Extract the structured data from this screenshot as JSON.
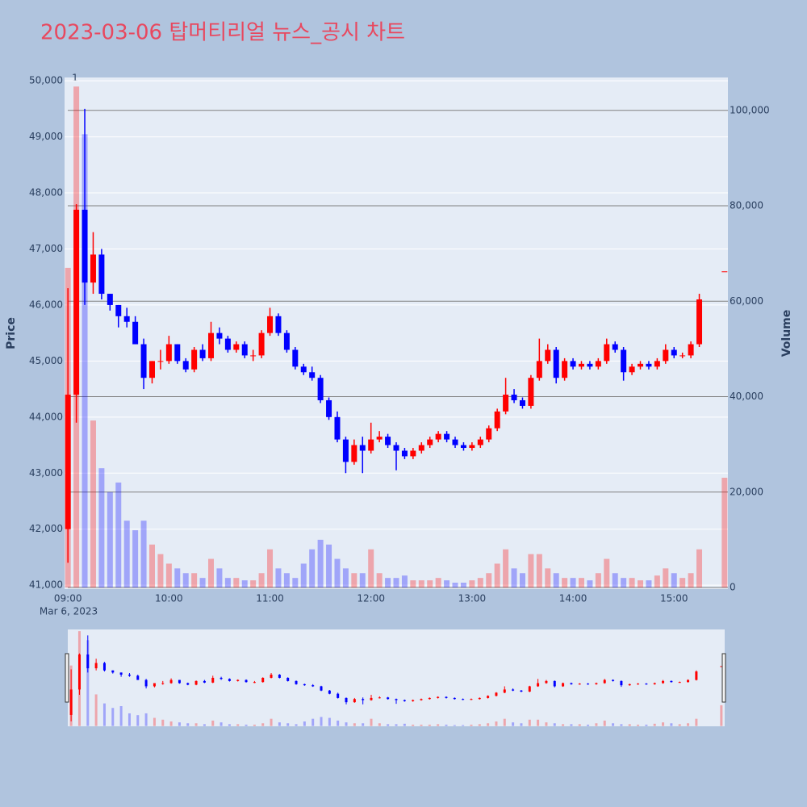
{
  "chart_data": {
    "type": "candlestick",
    "title": "2023-03-06 탑머티리얼 뉴스_공시 차트",
    "annotation": "1",
    "y_label": "Price",
    "y2_label": "Volume",
    "x_date_label": "Mar 6, 2023",
    "up_color": "#ff0000",
    "down_color": "#0000ff",
    "x": [
      "09:00",
      "09:05",
      "09:10",
      "09:15",
      "09:20",
      "09:25",
      "09:30",
      "09:35",
      "09:40",
      "09:45",
      "09:50",
      "09:55",
      "10:00",
      "10:05",
      "10:10",
      "10:15",
      "10:20",
      "10:25",
      "10:30",
      "10:35",
      "10:40",
      "10:45",
      "10:50",
      "10:55",
      "11:00",
      "11:05",
      "11:10",
      "11:15",
      "11:20",
      "11:25",
      "11:30",
      "11:35",
      "11:40",
      "11:45",
      "11:50",
      "11:55",
      "12:00",
      "12:05",
      "12:10",
      "12:15",
      "12:20",
      "12:25",
      "12:30",
      "12:35",
      "12:40",
      "12:45",
      "12:50",
      "12:55",
      "13:00",
      "13:05",
      "13:10",
      "13:15",
      "13:20",
      "13:25",
      "13:30",
      "13:35",
      "13:40",
      "13:45",
      "13:50",
      "13:55",
      "14:00",
      "14:05",
      "14:10",
      "14:15",
      "14:20",
      "14:25",
      "14:30",
      "14:35",
      "14:40",
      "14:45",
      "14:50",
      "14:55",
      "15:00",
      "15:05",
      "15:10",
      "15:15",
      "15:30"
    ],
    "open": [
      42000,
      44400,
      47700,
      46400,
      46900,
      46200,
      46000,
      45800,
      45700,
      45300,
      44700,
      45000,
      45000,
      45300,
      45000,
      44850,
      45200,
      45050,
      45500,
      45400,
      45200,
      45300,
      45100,
      45100,
      45500,
      45800,
      45500,
      45200,
      44900,
      44800,
      44700,
      44300,
      44000,
      43600,
      43200,
      43500,
      43400,
      43600,
      43650,
      43500,
      43400,
      43300,
      43400,
      43500,
      43600,
      43700,
      43600,
      43500,
      43450,
      43500,
      43600,
      43800,
      44100,
      44400,
      44300,
      44200,
      44700,
      45000,
      45200,
      44700,
      45000,
      44900,
      44950,
      44900,
      45000,
      45300,
      45200,
      44800,
      44900,
      44950,
      44900,
      45000,
      45200,
      45100,
      45100,
      45300,
      46600
    ],
    "high": [
      46300,
      47800,
      49500,
      47300,
      47000,
      46200,
      46000,
      45950,
      45800,
      45400,
      45000,
      45200,
      45450,
      45300,
      45050,
      45250,
      45300,
      45700,
      45600,
      45450,
      45350,
      45350,
      45200,
      45550,
      45950,
      45850,
      45550,
      45250,
      44950,
      44900,
      44750,
      44350,
      44100,
      43650,
      43600,
      43650,
      43900,
      43750,
      43700,
      43550,
      43450,
      43450,
      43550,
      43650,
      43750,
      43750,
      43650,
      43550,
      43550,
      43650,
      43850,
      44150,
      44700,
      44500,
      44350,
      44750,
      45400,
      45300,
      45250,
      45050,
      45050,
      45000,
      45000,
      45050,
      45400,
      45350,
      45250,
      44950,
      45000,
      45000,
      45050,
      45300,
      45250,
      45150,
      45350,
      46200,
      46600
    ],
    "low": [
      41400,
      43900,
      46000,
      46200,
      46100,
      45900,
      45600,
      45600,
      45300,
      44500,
      44600,
      44850,
      44950,
      44950,
      44800,
      44800,
      45000,
      45000,
      45300,
      45150,
      45150,
      45050,
      45000,
      45050,
      45450,
      45450,
      45150,
      44850,
      44750,
      44650,
      44250,
      43950,
      43550,
      43000,
      43150,
      43000,
      43350,
      43550,
      43450,
      43050,
      43250,
      43250,
      43350,
      43450,
      43550,
      43550,
      43450,
      43400,
      43400,
      43450,
      43550,
      43750,
      44050,
      44250,
      44150,
      44150,
      44650,
      44950,
      44600,
      44650,
      44850,
      44850,
      44850,
      44850,
      44950,
      45150,
      44650,
      44750,
      44850,
      44850,
      44850,
      44950,
      45050,
      45050,
      45050,
      45250,
      46600
    ],
    "close": [
      44400,
      47700,
      46400,
      46900,
      46200,
      46000,
      45800,
      45700,
      45300,
      44700,
      45000,
      45000,
      45300,
      45000,
      44850,
      45200,
      45050,
      45500,
      45400,
      45200,
      45300,
      45100,
      45100,
      45500,
      45800,
      45500,
      45200,
      44900,
      44800,
      44700,
      44300,
      44000,
      43600,
      43200,
      43500,
      43400,
      43600,
      43650,
      43500,
      43400,
      43300,
      43400,
      43500,
      43600,
      43700,
      43600,
      43500,
      43450,
      43500,
      43600,
      43800,
      44100,
      44400,
      44300,
      44200,
      44700,
      45000,
      45200,
      44700,
      45000,
      44900,
      44950,
      44900,
      45000,
      45300,
      45200,
      44800,
      44900,
      44950,
      44900,
      45000,
      45200,
      45100,
      45100,
      45300,
      46100,
      46600
    ],
    "volume": [
      67000,
      105000,
      95000,
      35000,
      25000,
      20000,
      22000,
      14000,
      12000,
      14000,
      9000,
      7000,
      5000,
      4000,
      3000,
      3000,
      2000,
      6000,
      4000,
      2000,
      2000,
      1500,
      1500,
      3000,
      8000,
      4000,
      3000,
      2000,
      5000,
      8000,
      10000,
      9000,
      6000,
      4000,
      3000,
      3000,
      8000,
      3000,
      2000,
      2000,
      2500,
      1500,
      1500,
      1500,
      2000,
      1500,
      1000,
      1000,
      1500,
      2000,
      3000,
      5000,
      8000,
      4000,
      3000,
      7000,
      7000,
      4000,
      3000,
      2000,
      2000,
      2000,
      1500,
      3000,
      6000,
      3000,
      2000,
      2000,
      1500,
      1500,
      2500,
      4000,
      3000,
      2000,
      3000,
      8000,
      23000
    ],
    "xlim": [
      "08:58",
      "15:32"
    ],
    "xticks": [
      "09:00",
      "10:00",
      "11:00",
      "12:00",
      "13:00",
      "14:00",
      "15:00"
    ],
    "ylim": [
      40930,
      50060
    ],
    "yticks": [
      {
        "value": 41000,
        "label": "41,000"
      },
      {
        "value": 42000,
        "label": "42,000"
      },
      {
        "value": 43000,
        "label": "43,000"
      },
      {
        "value": 44000,
        "label": "44,000"
      },
      {
        "value": 45000,
        "label": "45,000"
      },
      {
        "value": 46000,
        "label": "46,000"
      },
      {
        "value": 47000,
        "label": "47,000"
      },
      {
        "value": 48000,
        "label": "48,000"
      },
      {
        "value": 49000,
        "label": "49,000"
      },
      {
        "value": 50000,
        "label": "50,000"
      }
    ],
    "y2lim": [
      -340,
      106900
    ],
    "y2ticks": [
      0,
      {
        "value": 20000,
        "label": "20,000"
      },
      {
        "value": 40000,
        "label": "40,000"
      },
      {
        "value": 60000,
        "label": "60,000"
      },
      {
        "value": 80000,
        "label": "80,000"
      },
      {
        "value": 100000,
        "label": "100,000"
      }
    ],
    "grid": true
  }
}
